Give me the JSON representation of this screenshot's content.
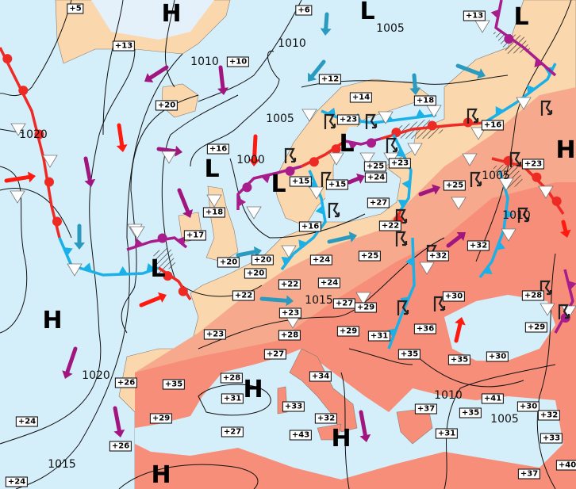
{
  "map": {
    "colors": {
      "sea": "#d4eefa",
      "land_cool": "#fbd7ad",
      "land_warm": "#f7a98d",
      "land_hot": "#f68e79",
      "ice": "#e4f0fa",
      "cold_front": "#1ab0e8",
      "warm_front": "#ee2a24",
      "occluded_front": "#a81c8c",
      "warm_arrow": "#ff1a10",
      "cool_arrow": "#2a9bbf",
      "neutral_arrow": "#a0157e",
      "isobar": "#111111"
    },
    "icons": [
      "trough-triangle-icon",
      "thunderstorm-icon",
      "wind-arrow-icon"
    ],
    "temperatures": [
      "+5",
      "+6",
      "+13",
      "+13",
      "+10",
      "+12",
      "+14",
      "+18",
      "+20",
      "+23",
      "+16",
      "+16",
      "+25",
      "+23",
      "+23",
      "+15",
      "+15",
      "+24",
      "+25",
      "+18",
      "+27",
      "+22",
      "+16",
      "+17",
      "+32",
      "+20",
      "+20",
      "+24",
      "+25",
      "+32",
      "+20",
      "+22",
      "+24",
      "+22",
      "+30",
      "+28",
      "+23",
      "+23",
      "+27",
      "+29",
      "+29",
      "+36",
      "+28",
      "+29",
      "+31",
      "+27",
      "+35",
      "+35",
      "+30",
      "+26",
      "+35",
      "+28",
      "+31",
      "+34",
      "+41",
      "+30",
      "+32",
      "+33",
      "+37",
      "+35",
      "+24",
      "+29",
      "+32",
      "+26",
      "+27",
      "+43",
      "+31",
      "+33",
      "+40",
      "+37",
      "+24"
    ],
    "pressure_labels": [
      "1005",
      "1010",
      "1010",
      "1005",
      "1020",
      "1000",
      "1005",
      "1010",
      "1015",
      "1020",
      "1010",
      "1005",
      "1015"
    ],
    "pressure_centers": [
      "H",
      "L",
      "L",
      "L",
      "L",
      "H",
      "L",
      "L",
      "H",
      "H",
      "H",
      "H"
    ]
  }
}
